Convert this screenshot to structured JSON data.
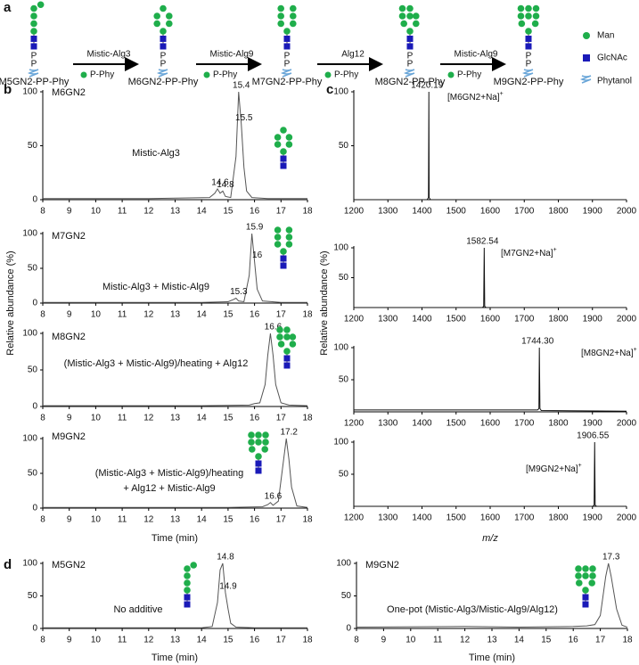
{
  "panel_letters": [
    "a",
    "b",
    "c",
    "d"
  ],
  "panel_a": {
    "products": [
      "M5GN2-PP-Phy",
      "M6GN2-PP-Phy",
      "M7GN2-PP-Phy",
      "M8GN2-PP-Phy",
      "M9GN2-PP-Phy"
    ],
    "enzymes": [
      "Mistic-Alg3",
      "Mistic-Alg9",
      "Alg12",
      "Mistic-Alg9"
    ],
    "donor": "P-Phy",
    "phosphate": "P",
    "legend": [
      "Man",
      "GlcNAc",
      "Phytanol"
    ]
  },
  "shared_labels": {
    "b_ylabel": "Relative abundance (%)",
    "c_ylabel": "Relative abundance (%)"
  },
  "chart_data": [
    {
      "type": "line",
      "name": "M6GN2",
      "condition": [
        "Mistic-Alg3"
      ],
      "color": "#555555",
      "xlim": [
        8,
        18
      ],
      "ylim": [
        0,
        100
      ],
      "xticks": [
        8,
        9,
        10,
        11,
        12,
        13,
        14,
        15,
        16,
        17,
        18
      ],
      "yticks": [
        0,
        50,
        100
      ],
      "x": [
        8,
        12,
        14.3,
        14.5,
        14.6,
        14.7,
        14.8,
        14.9,
        15.1,
        15.3,
        15.4,
        15.5,
        15.6,
        15.7,
        15.9,
        16.5,
        18
      ],
      "values": [
        1,
        1,
        2,
        6,
        10,
        6,
        8,
        3,
        2,
        40,
        100,
        70,
        30,
        8,
        2,
        1,
        1
      ],
      "peaks": [
        {
          "x": 14.6,
          "y": 10
        },
        {
          "x": 14.8,
          "y": 8
        },
        {
          "x": 15.4,
          "y": 100
        },
        {
          "x": 15.5,
          "y": 70
        }
      ]
    },
    {
      "type": "line",
      "name": "M7GN2",
      "condition": [
        "Mistic-Alg3 + Mistic-Alg9"
      ],
      "color": "#555555",
      "xlim": [
        8,
        18
      ],
      "ylim": [
        0,
        100
      ],
      "xticks": [
        8,
        9,
        10,
        11,
        12,
        13,
        14,
        15,
        16,
        17,
        18
      ],
      "yticks": [
        0,
        50,
        100
      ],
      "x": [
        8,
        14,
        15,
        15.2,
        15.3,
        15.4,
        15.6,
        15.8,
        15.9,
        16,
        16.1,
        16.3,
        17,
        18
      ],
      "values": [
        1,
        1,
        2,
        5,
        7,
        3,
        2,
        40,
        100,
        60,
        20,
        3,
        1,
        1
      ],
      "peaks": [
        {
          "x": 15.3,
          "y": 7
        },
        {
          "x": 15.9,
          "y": 100
        },
        {
          "x": 16,
          "y": 60
        }
      ]
    },
    {
      "type": "line",
      "name": "M8GN2",
      "condition": [
        "(Mistic-Alg3 + Mistic-Alg9)/heating + Alg12"
      ],
      "color": "#555555",
      "xlim": [
        8,
        18
      ],
      "ylim": [
        0,
        100
      ],
      "xticks": [
        8,
        9,
        10,
        11,
        12,
        13,
        14,
        15,
        16,
        17,
        18
      ],
      "yticks": [
        0,
        50,
        100
      ],
      "x": [
        8,
        14,
        15.8,
        16,
        16.2,
        16.4,
        16.5,
        16.6,
        16.7,
        16.8,
        17,
        17.3,
        18
      ],
      "values": [
        1,
        1,
        2,
        4,
        5,
        30,
        70,
        100,
        70,
        30,
        5,
        2,
        1
      ],
      "peaks": [
        {
          "x": 16.6,
          "y": 100
        }
      ]
    },
    {
      "type": "line",
      "name": "M9GN2",
      "condition": [
        "(Mistic-Alg3 + Mistic-Alg9)/heating",
        "+ Alg12 + Mistic-Alg9"
      ],
      "color": "#555555",
      "xlim": [
        8,
        18
      ],
      "ylim": [
        0,
        100
      ],
      "xticks": [
        8,
        9,
        10,
        11,
        12,
        13,
        14,
        15,
        16,
        17,
        18
      ],
      "yticks": [
        0,
        50,
        100
      ],
      "xlabel": "Time (min)",
      "x": [
        8,
        15,
        16.3,
        16.5,
        16.6,
        16.7,
        16.9,
        17.1,
        17.2,
        17.3,
        17.4,
        17.6,
        18
      ],
      "values": [
        1,
        1,
        2,
        5,
        8,
        4,
        10,
        70,
        100,
        70,
        30,
        3,
        1
      ],
      "peaks": [
        {
          "x": 16.6,
          "y": 8
        },
        {
          "x": 17.2,
          "y": 100
        }
      ]
    },
    {
      "type": "line",
      "ion_label": "[M6GN2+Na]",
      "ion_charge": "+",
      "color": "#111111",
      "xlim": [
        1200,
        2000
      ],
      "ylim": [
        0,
        100
      ],
      "xticks": [
        1200,
        1300,
        1400,
        1500,
        1600,
        1700,
        1800,
        1900,
        2000
      ],
      "yticks": [
        50,
        100
      ],
      "x": [
        1200,
        1415,
        1419,
        1420.19,
        1421,
        1425,
        2000
      ],
      "values": [
        0,
        0,
        2,
        100,
        2,
        0,
        0
      ],
      "peaks": [
        {
          "x": 1420.19,
          "y": 100
        }
      ]
    },
    {
      "type": "line",
      "ion_label": "[M7GN2+Na]",
      "ion_charge": "+",
      "color": "#111111",
      "xlim": [
        1200,
        2000
      ],
      "ylim": [
        0,
        100
      ],
      "xticks": [
        1200,
        1300,
        1400,
        1500,
        1600,
        1700,
        1800,
        1900,
        2000
      ],
      "yticks": [
        50,
        100
      ],
      "x": [
        1200,
        1577,
        1581,
        1582.54,
        1584,
        1588,
        2000
      ],
      "values": [
        0,
        0,
        2,
        100,
        2,
        0,
        0
      ],
      "peaks": [
        {
          "x": 1582.54,
          "y": 100
        }
      ]
    },
    {
      "type": "line",
      "ion_label": "[M8GN2+Na]",
      "ion_charge": "+",
      "color": "#111111",
      "xlim": [
        1200,
        2000
      ],
      "ylim": [
        0,
        100
      ],
      "xticks": [
        1200,
        1300,
        1400,
        1500,
        1600,
        1700,
        1800,
        1900,
        2000
      ],
      "yticks": [
        50,
        100
      ],
      "x": [
        1200,
        1739,
        1743,
        1744.3,
        1746,
        1750,
        2000
      ],
      "values": [
        3,
        3,
        5,
        100,
        5,
        2,
        1
      ],
      "peaks": [
        {
          "x": 1744.3,
          "label": "1744.30",
          "y": 100
        }
      ]
    },
    {
      "type": "line",
      "ion_label": "[M9GN2+Na]",
      "ion_charge": "+",
      "color": "#111111",
      "xlim": [
        1200,
        2000
      ],
      "ylim": [
        0,
        100
      ],
      "xticks": [
        1200,
        1300,
        1400,
        1500,
        1600,
        1700,
        1800,
        1900,
        2000
      ],
      "yticks": [
        50,
        100
      ],
      "xlabel": "m/z",
      "x": [
        1200,
        1901,
        1905,
        1906.55,
        1908,
        1912,
        2000
      ],
      "values": [
        0,
        0,
        2,
        100,
        2,
        0,
        0
      ],
      "peaks": [
        {
          "x": 1906.55,
          "y": 100
        }
      ]
    },
    {
      "type": "line",
      "name": "M5GN2",
      "condition": [
        "No additive"
      ],
      "color": "#555555",
      "xlim": [
        8,
        18
      ],
      "ylim": [
        0,
        100
      ],
      "xticks": [
        8,
        9,
        10,
        11,
        12,
        13,
        14,
        15,
        16,
        17,
        18
      ],
      "yticks": [
        0,
        50,
        100
      ],
      "xlabel": "Time (min)",
      "x": [
        8,
        14,
        14.4,
        14.6,
        14.7,
        14.8,
        14.9,
        15,
        15.1,
        15.3,
        16,
        18
      ],
      "values": [
        1,
        1,
        3,
        40,
        90,
        100,
        55,
        30,
        8,
        2,
        1,
        1
      ],
      "peaks": [
        {
          "x": 14.8,
          "y": 100
        },
        {
          "x": 14.9,
          "y": 55
        }
      ]
    },
    {
      "type": "line",
      "name": "M9GN2",
      "condition": [
        "One-pot (Mistic-Alg3/Mistic-Alg9/Alg12)"
      ],
      "color": "#555555",
      "xlim": [
        8,
        18
      ],
      "ylim": [
        0,
        100
      ],
      "xticks": [
        8,
        9,
        10,
        11,
        12,
        13,
        14,
        15,
        16,
        17,
        18
      ],
      "yticks": [
        0,
        50,
        100
      ],
      "xlabel": "Time (min)",
      "x": [
        8,
        12,
        14,
        16,
        16.5,
        16.8,
        17,
        17.2,
        17.3,
        17.4,
        17.6,
        17.8,
        18
      ],
      "values": [
        2,
        3,
        2,
        3,
        4,
        6,
        20,
        80,
        100,
        80,
        30,
        5,
        2
      ],
      "peaks": [
        {
          "x": 17.3,
          "y": 100
        }
      ]
    }
  ]
}
